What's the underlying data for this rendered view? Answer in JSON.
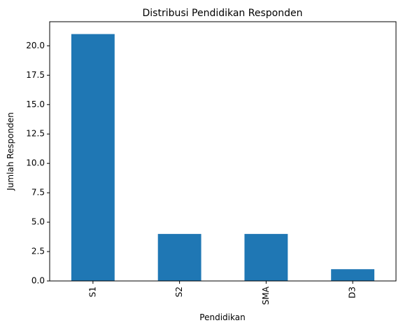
{
  "chart_data": {
    "type": "bar",
    "title": "Distribusi Pendidikan Responden",
    "xlabel": "Pendidikan",
    "ylabel": "Jumlah Responden",
    "categories": [
      "S1",
      "S2",
      "SMA",
      "D3"
    ],
    "values": [
      21,
      4,
      4,
      1
    ],
    "ylim": [
      0,
      22.05
    ],
    "yticks": [
      "0.0",
      "2.5",
      "5.0",
      "7.5",
      "10.0",
      "12.5",
      "15.0",
      "17.5",
      "20.0"
    ],
    "bar_color": "#1f77b4",
    "grid": false,
    "legend": "none"
  }
}
